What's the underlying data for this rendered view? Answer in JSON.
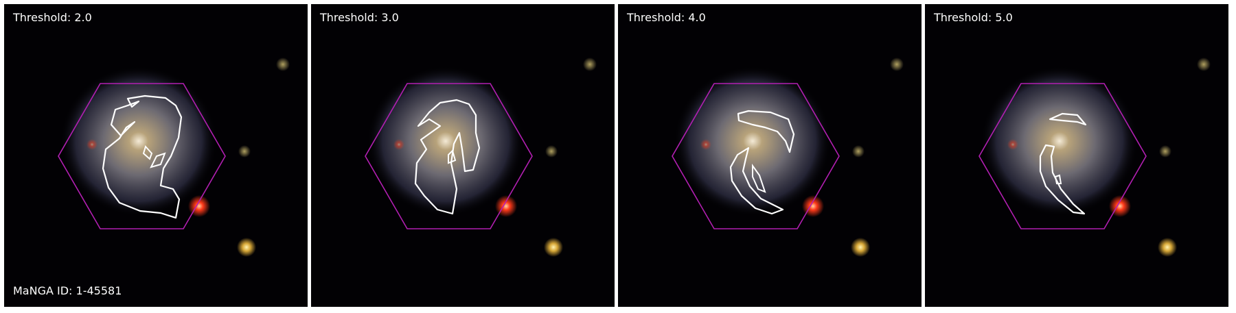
{
  "panels": [
    {
      "threshold_label": "Threshold: 2.0"
    },
    {
      "threshold_label": "Threshold: 3.0"
    },
    {
      "threshold_label": "Threshold: 4.0"
    },
    {
      "threshold_label": "Threshold: 5.0"
    }
  ],
  "manga_id_label": "MaNGA ID: 1-45581",
  "colors": {
    "background": "#020104",
    "hexagon": "#b21fb2",
    "contour": "#ffffff",
    "red_star": "#ff3a1a",
    "yellow_star": "#f0c24a"
  }
}
